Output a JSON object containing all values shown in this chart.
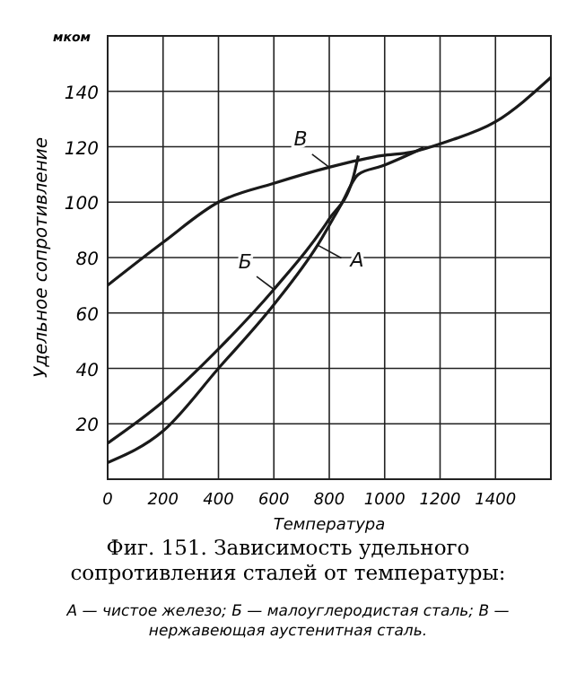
{
  "chart_data": {
    "type": "line",
    "title": "Фиг. 151. Зависимость удельного сопротивления сталей от температуры:",
    "xlabel": "Температура",
    "ylabel": "Удельное сопротивление",
    "annotations": [
      "мком",
      "А — чистое железо; Б — малоуглеродистая сталь; В — нержавеющая аустенитная сталь."
    ],
    "xlim": [
      0,
      1600
    ],
    "ylim": [
      0,
      160
    ],
    "xticks": [
      0,
      200,
      400,
      600,
      800,
      1000,
      1200,
      1400
    ],
    "yticks": [
      20,
      40,
      60,
      80,
      100,
      120,
      140
    ],
    "grid": true,
    "marker": "none",
    "line_style": "solid",
    "series": [
      {
        "name": "В",
        "color": "#1a1a1a",
        "x": [
          0,
          200,
          400,
          600,
          800,
          990,
          1095,
          1220,
          1400,
          1600
        ],
        "values": [
          70,
          85.5,
          100,
          106.8,
          112.6,
          116.8,
          118,
          121.7,
          129,
          145
        ]
      },
      {
        "name": "Б",
        "color": "#1a1a1a",
        "x": [
          0,
          200,
          400,
          600,
          800,
          884,
          905
        ],
        "values": [
          13,
          28,
          47,
          68.5,
          94,
          108,
          116.8
        ]
      },
      {
        "name": "А",
        "color": "#1a1a1a",
        "x": [
          0,
          200,
          400,
          600,
          758,
          842,
          905,
          990,
          1140
        ],
        "values": [
          6,
          17.4,
          40,
          63,
          84.5,
          99,
          110,
          113,
          119.6
        ]
      }
    ]
  }
}
